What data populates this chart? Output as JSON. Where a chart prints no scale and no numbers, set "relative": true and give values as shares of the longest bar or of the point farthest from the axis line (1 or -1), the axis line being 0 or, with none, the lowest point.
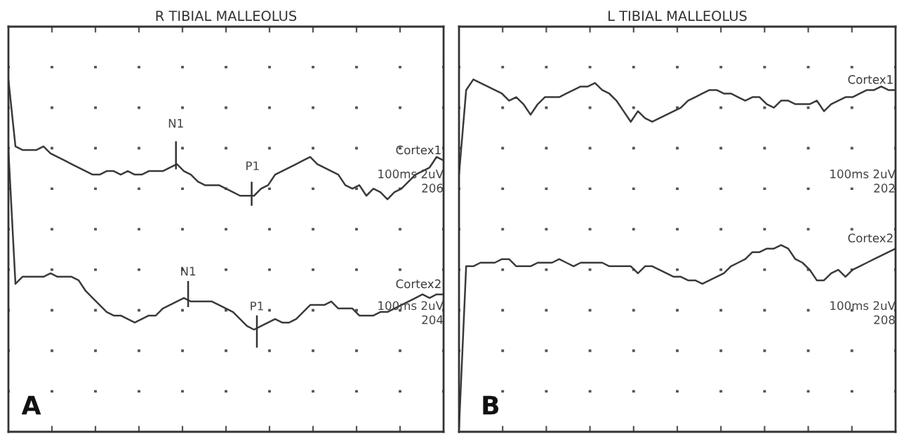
{
  "chart_data": [
    {
      "type": "line",
      "title": "R TIBIAL MALLEOLUS",
      "relative": true,
      "grid": true,
      "tick_labels": false,
      "categories": [
        null,
        null,
        null,
        null,
        null,
        null,
        null,
        null,
        null,
        null,
        null,
        null,
        null,
        null,
        null,
        null,
        null,
        null,
        null,
        null,
        null,
        null,
        null,
        null,
        null,
        null,
        null,
        null,
        null,
        null,
        null,
        null,
        null,
        null,
        null,
        null,
        null,
        null,
        null,
        null,
        null,
        null,
        null,
        null,
        null,
        null,
        null,
        null,
        null,
        null,
        null,
        null,
        null,
        null,
        null,
        null,
        null,
        null,
        null,
        null,
        null,
        null,
        null
      ],
      "series": [
        {
          "name": "Cortex1",
          "color": "#3a3a3a",
          "values": [
            1.0,
            0.81,
            0.8,
            0.8,
            0.8,
            0.81,
            0.79,
            0.78,
            0.77,
            0.76,
            0.75,
            0.74,
            0.73,
            0.73,
            0.74,
            0.74,
            0.73,
            0.74,
            0.73,
            0.73,
            0.74,
            0.74,
            0.74,
            0.75,
            0.76,
            0.74,
            0.73,
            0.71,
            0.7,
            0.7,
            0.7,
            0.69,
            0.68,
            0.67,
            0.67,
            0.67,
            0.69,
            0.7,
            0.73,
            0.74,
            0.75,
            0.76,
            0.77,
            0.78,
            0.76,
            0.75,
            0.74,
            0.73,
            0.7,
            0.69,
            0.7,
            0.67,
            0.69,
            0.68,
            0.66,
            0.68,
            0.69,
            0.71,
            0.73,
            0.74,
            0.75,
            0.78,
            0.77
          ]
        },
        {
          "name": "Cortex2",
          "color": "#3a3a3a",
          "values": [
            0.8,
            0.42,
            0.44,
            0.44,
            0.44,
            0.44,
            0.45,
            0.44,
            0.44,
            0.44,
            0.43,
            0.4,
            0.38,
            0.36,
            0.34,
            0.33,
            0.33,
            0.32,
            0.31,
            0.32,
            0.33,
            0.33,
            0.35,
            0.36,
            0.37,
            0.38,
            0.37,
            0.37,
            0.37,
            0.37,
            0.36,
            0.35,
            0.34,
            0.32,
            0.3,
            0.29,
            0.3,
            0.31,
            0.32,
            0.31,
            0.31,
            0.32,
            0.34,
            0.36,
            0.36,
            0.36,
            0.37,
            0.35,
            0.35,
            0.35,
            0.33,
            0.33,
            0.33,
            0.34,
            0.34,
            0.35,
            0.36,
            0.37,
            0.38,
            0.39,
            0.38,
            0.39,
            0.39
          ]
        }
      ],
      "annotations": [
        "N1",
        "P1",
        "N1",
        "P1",
        "100ms 2uV",
        "206",
        "100ms 2uV",
        "204",
        "A"
      ]
    },
    {
      "type": "line",
      "title": "L TIBIAL MALLEOLUS",
      "relative": true,
      "grid": true,
      "tick_labels": false,
      "categories": [
        null,
        null,
        null,
        null,
        null,
        null,
        null,
        null,
        null,
        null,
        null,
        null,
        null,
        null,
        null,
        null,
        null,
        null,
        null,
        null,
        null,
        null,
        null,
        null,
        null,
        null,
        null,
        null,
        null,
        null,
        null,
        null,
        null,
        null,
        null,
        null,
        null,
        null,
        null,
        null,
        null,
        null,
        null,
        null,
        null,
        null,
        null,
        null,
        null,
        null,
        null,
        null,
        null,
        null,
        null,
        null,
        null,
        null,
        null,
        null,
        null,
        null
      ],
      "series": [
        {
          "name": "Cortex1",
          "color": "#3a3a3a",
          "values": [
            0.73,
            0.97,
            1.0,
            0.99,
            0.98,
            0.97,
            0.96,
            0.94,
            0.95,
            0.93,
            0.9,
            0.93,
            0.95,
            0.95,
            0.95,
            0.96,
            0.97,
            0.98,
            0.98,
            0.99,
            0.97,
            0.96,
            0.94,
            0.91,
            0.88,
            0.91,
            0.89,
            0.88,
            0.89,
            0.9,
            0.91,
            0.92,
            0.94,
            0.95,
            0.96,
            0.97,
            0.97,
            0.96,
            0.96,
            0.95,
            0.94,
            0.95,
            0.95,
            0.93,
            0.92,
            0.94,
            0.94,
            0.93,
            0.93,
            0.93,
            0.94,
            0.91,
            0.93,
            0.94,
            0.95,
            0.95,
            0.96,
            0.97,
            0.97,
            0.98,
            0.97,
            0.97
          ]
        },
        {
          "name": "Cortex2",
          "color": "#3a3a3a",
          "values": [
            0.01,
            0.47,
            0.47,
            0.48,
            0.48,
            0.48,
            0.49,
            0.49,
            0.47,
            0.47,
            0.47,
            0.48,
            0.48,
            0.48,
            0.49,
            0.48,
            0.47,
            0.48,
            0.48,
            0.48,
            0.48,
            0.47,
            0.47,
            0.47,
            0.47,
            0.45,
            0.47,
            0.47,
            0.46,
            0.45,
            0.44,
            0.44,
            0.43,
            0.43,
            0.42,
            0.43,
            0.44,
            0.45,
            0.47,
            0.48,
            0.49,
            0.51,
            0.51,
            0.52,
            0.52,
            0.53,
            0.52,
            0.49,
            0.48,
            0.46,
            0.43,
            0.43,
            0.45,
            0.46,
            0.44,
            0.46,
            0.47,
            0.48,
            0.49,
            0.5,
            0.51,
            0.52
          ]
        }
      ],
      "annotations": [
        "100ms 2uV",
        "202",
        "100ms 2uV",
        "208",
        "B"
      ]
    }
  ]
}
